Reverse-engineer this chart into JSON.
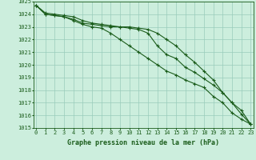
{
  "hours": [
    0,
    1,
    2,
    3,
    4,
    5,
    6,
    7,
    8,
    9,
    10,
    11,
    12,
    13,
    14,
    15,
    16,
    17,
    18,
    19,
    20,
    21,
    22,
    23
  ],
  "line1": [
    1024.7,
    1024.0,
    1023.9,
    1023.8,
    1023.6,
    1023.3,
    1023.2,
    1023.1,
    1023.0,
    1023.0,
    1022.9,
    1022.8,
    1022.5,
    1021.5,
    1020.8,
    1020.5,
    1019.8,
    1019.4,
    1018.9,
    1018.4,
    1017.8,
    1017.0,
    1016.4,
    1015.3
  ],
  "line2": [
    1024.7,
    1024.0,
    1023.9,
    1023.8,
    1023.5,
    1023.2,
    1023.0,
    1022.9,
    1022.5,
    1022.0,
    1021.5,
    1021.0,
    1020.5,
    1020.0,
    1019.5,
    1019.2,
    1018.8,
    1018.5,
    1018.2,
    1017.5,
    1017.0,
    1016.2,
    1015.7,
    1015.3
  ],
  "line3": [
    1024.7,
    1024.1,
    1024.0,
    1023.9,
    1023.8,
    1023.5,
    1023.3,
    1023.2,
    1023.1,
    1023.0,
    1023.0,
    1022.9,
    1022.8,
    1022.5,
    1022.0,
    1021.5,
    1020.8,
    1020.2,
    1019.5,
    1018.8,
    1017.8,
    1017.0,
    1016.1,
    1015.3
  ],
  "ylim": [
    1015,
    1025
  ],
  "xlim": [
    0,
    23
  ],
  "yticks": [
    1015,
    1016,
    1017,
    1018,
    1019,
    1020,
    1021,
    1022,
    1023,
    1024,
    1025
  ],
  "xlabel": "Graphe pression niveau de la mer (hPa)",
  "line_color": "#1a5c1a",
  "bg_color": "#cceedd",
  "grid_color": "#99ccbb",
  "marker": "+",
  "linewidth": 0.8,
  "markersize": 2.5,
  "tick_fontsize": 5.0,
  "xlabel_fontsize": 6.0
}
